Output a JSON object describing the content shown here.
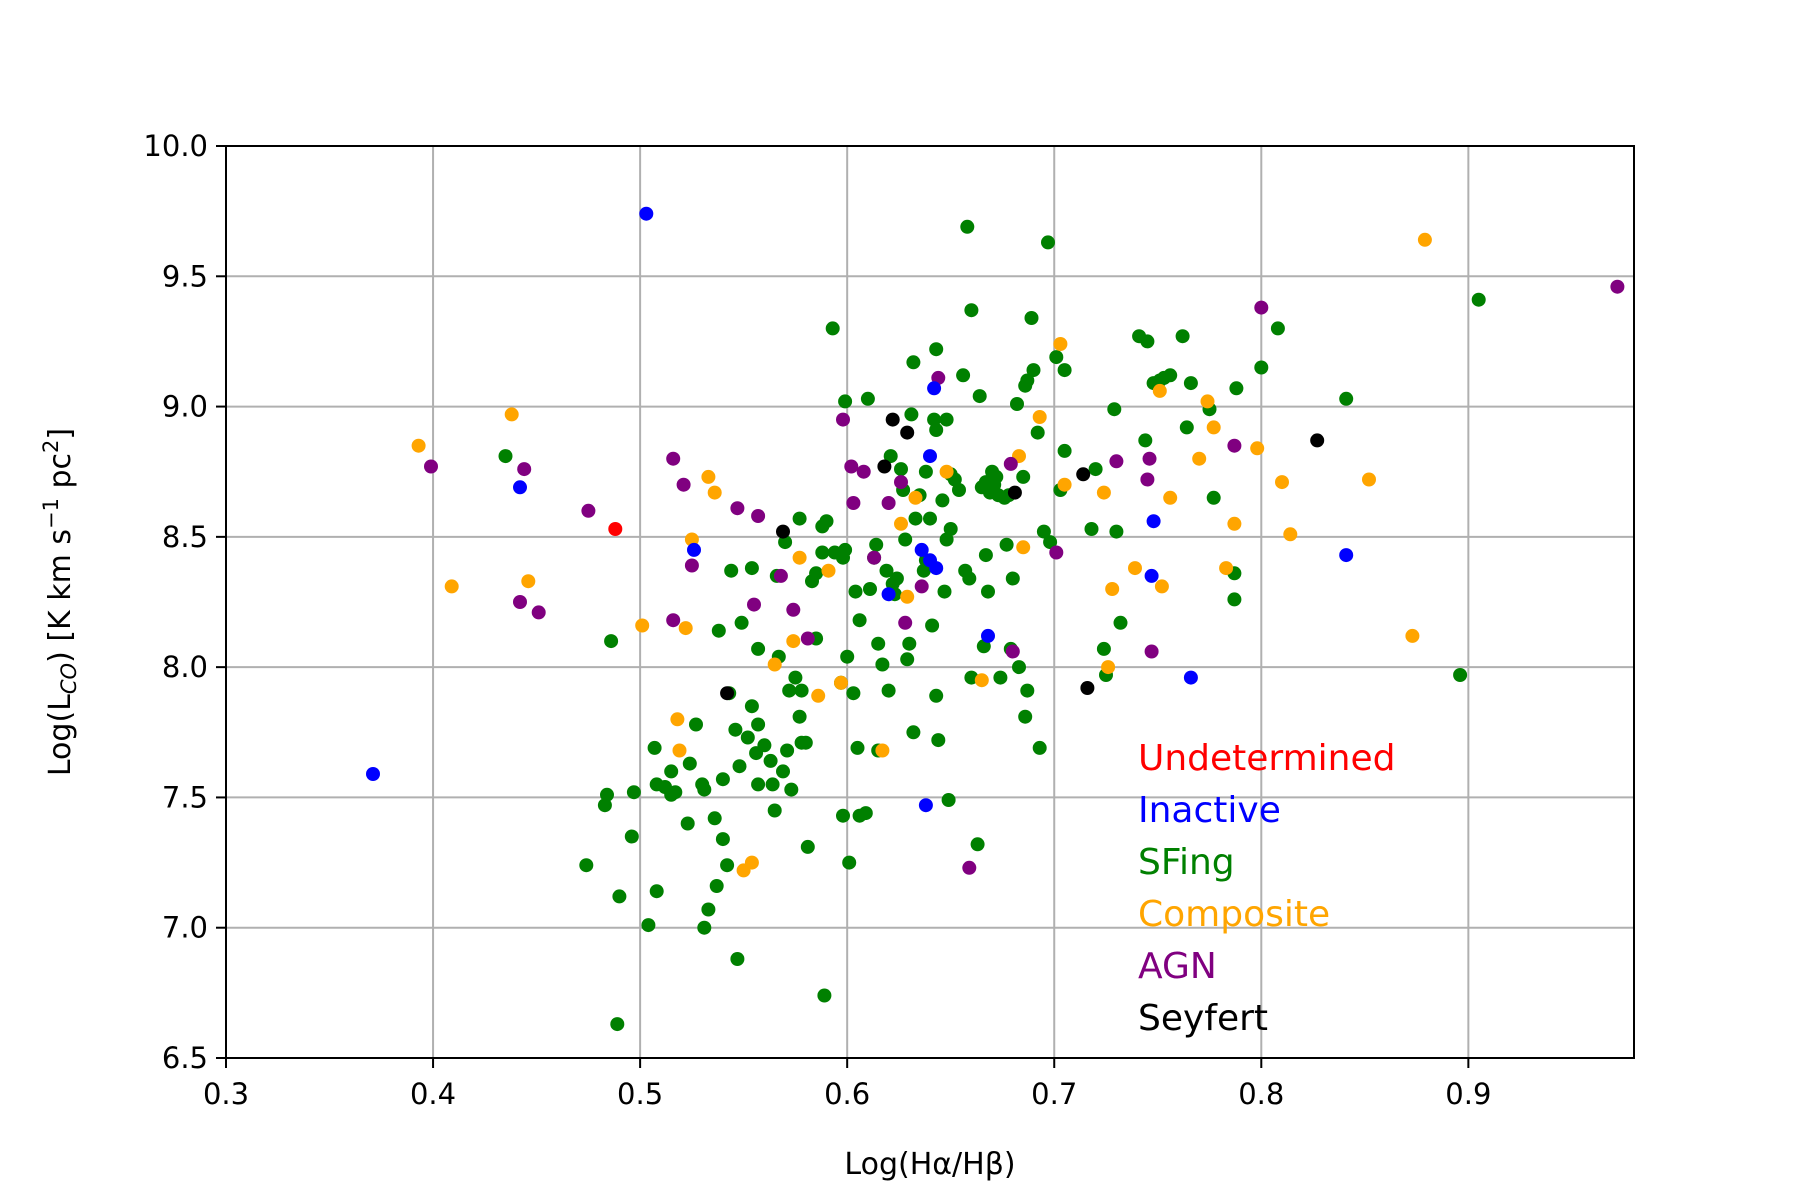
{
  "chart_data": {
    "type": "scatter",
    "xlabel_parts": [
      "Log(H",
      "α",
      "/H",
      "β",
      ")"
    ],
    "ylabel_parts": [
      "Log(L",
      "CO",
      ") [K km s",
      "−1",
      " pc",
      "2",
      "]"
    ],
    "xlim": [
      0.3,
      0.98
    ],
    "ylim": [
      6.5,
      10.0
    ],
    "xticks": [
      "0.3",
      "0.4",
      "0.5",
      "0.6",
      "0.7",
      "0.8",
      "0.9"
    ],
    "yticks": [
      "6.5",
      "7.0",
      "7.5",
      "8.0",
      "8.5",
      "9.0",
      "9.5",
      "10.0"
    ],
    "grid": true,
    "legend_position": "lower-right",
    "series": [
      {
        "name": "Undetermined",
        "color": "#ff0000",
        "points": [
          [
            0.488,
            8.53
          ]
        ]
      },
      {
        "name": "Inactive",
        "color": "#0000ff",
        "points": [
          [
            0.371,
            7.59
          ],
          [
            0.442,
            8.69
          ],
          [
            0.503,
            9.74
          ],
          [
            0.526,
            8.45
          ],
          [
            0.64,
            8.81
          ],
          [
            0.642,
            9.07
          ],
          [
            0.64,
            8.41
          ],
          [
            0.62,
            8.28
          ],
          [
            0.636,
            8.45
          ],
          [
            0.643,
            8.38
          ],
          [
            0.638,
            7.47
          ],
          [
            0.668,
            8.12
          ],
          [
            0.748,
            8.56
          ],
          [
            0.747,
            8.35
          ],
          [
            0.766,
            7.96
          ],
          [
            0.841,
            8.43
          ]
        ]
      },
      {
        "name": "SFing",
        "color": "#008000",
        "points": [
          [
            0.435,
            8.81
          ],
          [
            0.474,
            7.24
          ],
          [
            0.483,
            7.47
          ],
          [
            0.484,
            7.51
          ],
          [
            0.486,
            8.1
          ],
          [
            0.489,
            6.63
          ],
          [
            0.49,
            7.12
          ],
          [
            0.496,
            7.35
          ],
          [
            0.497,
            7.52
          ],
          [
            0.504,
            7.01
          ],
          [
            0.507,
            7.69
          ],
          [
            0.508,
            7.14
          ],
          [
            0.508,
            7.55
          ],
          [
            0.512,
            7.54
          ],
          [
            0.515,
            7.51
          ],
          [
            0.515,
            7.6
          ],
          [
            0.517,
            7.52
          ],
          [
            0.523,
            7.4
          ],
          [
            0.524,
            7.63
          ],
          [
            0.527,
            7.78
          ],
          [
            0.53,
            7.55
          ],
          [
            0.531,
            7.53
          ],
          [
            0.531,
            7.0
          ],
          [
            0.533,
            7.07
          ],
          [
            0.536,
            7.42
          ],
          [
            0.537,
            7.16
          ],
          [
            0.538,
            8.14
          ],
          [
            0.54,
            7.34
          ],
          [
            0.54,
            7.57
          ],
          [
            0.542,
            7.24
          ],
          [
            0.543,
            7.9
          ],
          [
            0.544,
            8.37
          ],
          [
            0.546,
            7.76
          ],
          [
            0.547,
            6.88
          ],
          [
            0.548,
            7.62
          ],
          [
            0.549,
            8.17
          ],
          [
            0.552,
            7.73
          ],
          [
            0.554,
            7.85
          ],
          [
            0.554,
            8.38
          ],
          [
            0.556,
            7.67
          ],
          [
            0.557,
            7.78
          ],
          [
            0.557,
            8.07
          ],
          [
            0.557,
            7.55
          ],
          [
            0.56,
            7.7
          ],
          [
            0.563,
            7.64
          ],
          [
            0.564,
            7.55
          ],
          [
            0.565,
            7.45
          ],
          [
            0.566,
            8.35
          ],
          [
            0.567,
            8.04
          ],
          [
            0.569,
            7.6
          ],
          [
            0.57,
            8.48
          ],
          [
            0.571,
            7.68
          ],
          [
            0.572,
            7.91
          ],
          [
            0.573,
            7.53
          ],
          [
            0.575,
            7.96
          ],
          [
            0.577,
            7.81
          ],
          [
            0.577,
            8.57
          ],
          [
            0.578,
            7.91
          ],
          [
            0.578,
            7.71
          ],
          [
            0.58,
            7.71
          ],
          [
            0.581,
            7.31
          ],
          [
            0.583,
            8.33
          ],
          [
            0.585,
            8.36
          ],
          [
            0.585,
            8.11
          ],
          [
            0.588,
            8.44
          ],
          [
            0.588,
            8.54
          ],
          [
            0.589,
            6.74
          ],
          [
            0.59,
            8.56
          ],
          [
            0.593,
            9.3
          ],
          [
            0.594,
            8.44
          ],
          [
            0.597,
            7.94
          ],
          [
            0.598,
            8.42
          ],
          [
            0.598,
            7.43
          ],
          [
            0.599,
            8.45
          ],
          [
            0.599,
            9.02
          ],
          [
            0.6,
            8.04
          ],
          [
            0.601,
            7.25
          ],
          [
            0.603,
            7.9
          ],
          [
            0.604,
            8.29
          ],
          [
            0.605,
            7.69
          ],
          [
            0.606,
            8.18
          ],
          [
            0.606,
            7.43
          ],
          [
            0.609,
            7.44
          ],
          [
            0.61,
            9.03
          ],
          [
            0.611,
            8.3
          ],
          [
            0.613,
            8.42
          ],
          [
            0.614,
            8.47
          ],
          [
            0.615,
            8.09
          ],
          [
            0.615,
            7.68
          ],
          [
            0.617,
            8.01
          ],
          [
            0.619,
            8.37
          ],
          [
            0.62,
            7.91
          ],
          [
            0.621,
            8.81
          ],
          [
            0.622,
            8.32
          ],
          [
            0.623,
            8.28
          ],
          [
            0.624,
            8.34
          ],
          [
            0.626,
            8.76
          ],
          [
            0.627,
            8.68
          ],
          [
            0.628,
            8.49
          ],
          [
            0.629,
            8.03
          ],
          [
            0.63,
            8.09
          ],
          [
            0.631,
            8.97
          ],
          [
            0.632,
            7.75
          ],
          [
            0.632,
            9.17
          ],
          [
            0.633,
            8.57
          ],
          [
            0.635,
            8.66
          ],
          [
            0.637,
            8.37
          ],
          [
            0.638,
            8.41
          ],
          [
            0.638,
            8.75
          ],
          [
            0.64,
            8.57
          ],
          [
            0.641,
            8.16
          ],
          [
            0.642,
            8.95
          ],
          [
            0.643,
            7.89
          ],
          [
            0.643,
            8.91
          ],
          [
            0.643,
            9.22
          ],
          [
            0.644,
            7.72
          ],
          [
            0.646,
            8.64
          ],
          [
            0.647,
            8.29
          ],
          [
            0.648,
            8.49
          ],
          [
            0.648,
            8.95
          ],
          [
            0.649,
            7.49
          ],
          [
            0.65,
            8.53
          ],
          [
            0.65,
            8.74
          ],
          [
            0.652,
            8.72
          ],
          [
            0.654,
            8.68
          ],
          [
            0.656,
            9.12
          ],
          [
            0.657,
            8.37
          ],
          [
            0.658,
            9.69
          ],
          [
            0.659,
            8.34
          ],
          [
            0.66,
            9.37
          ],
          [
            0.66,
            7.96
          ],
          [
            0.663,
            7.32
          ],
          [
            0.664,
            9.04
          ],
          [
            0.665,
            8.69
          ],
          [
            0.666,
            8.08
          ],
          [
            0.667,
            8.43
          ],
          [
            0.667,
            8.71
          ],
          [
            0.668,
            8.29
          ],
          [
            0.669,
            8.67
          ],
          [
            0.67,
            8.75
          ],
          [
            0.671,
            8.7
          ],
          [
            0.672,
            8.73
          ],
          [
            0.673,
            8.66
          ],
          [
            0.674,
            7.96
          ],
          [
            0.676,
            8.65
          ],
          [
            0.677,
            8.47
          ],
          [
            0.678,
            8.66
          ],
          [
            0.679,
            8.07
          ],
          [
            0.68,
            8.34
          ],
          [
            0.682,
            9.01
          ],
          [
            0.683,
            8.0
          ],
          [
            0.685,
            8.73
          ],
          [
            0.686,
            9.08
          ],
          [
            0.686,
            7.81
          ],
          [
            0.687,
            9.1
          ],
          [
            0.687,
            7.91
          ],
          [
            0.689,
            9.34
          ],
          [
            0.69,
            9.14
          ],
          [
            0.692,
            8.9
          ],
          [
            0.693,
            7.69
          ],
          [
            0.695,
            8.52
          ],
          [
            0.697,
            9.63
          ],
          [
            0.698,
            8.48
          ],
          [
            0.701,
            9.19
          ],
          [
            0.703,
            8.68
          ],
          [
            0.705,
            8.83
          ],
          [
            0.705,
            9.14
          ],
          [
            0.718,
            8.53
          ],
          [
            0.72,
            8.76
          ],
          [
            0.724,
            8.07
          ],
          [
            0.725,
            7.97
          ],
          [
            0.729,
            8.99
          ],
          [
            0.73,
            8.52
          ],
          [
            0.732,
            8.17
          ],
          [
            0.741,
            9.27
          ],
          [
            0.744,
            8.87
          ],
          [
            0.745,
            9.25
          ],
          [
            0.748,
            9.09
          ],
          [
            0.751,
            9.1
          ],
          [
            0.753,
            9.11
          ],
          [
            0.756,
            9.12
          ],
          [
            0.762,
            9.27
          ],
          [
            0.764,
            8.92
          ],
          [
            0.766,
            9.09
          ],
          [
            0.775,
            8.99
          ],
          [
            0.777,
            8.65
          ],
          [
            0.787,
            8.36
          ],
          [
            0.787,
            8.26
          ],
          [
            0.788,
            9.07
          ],
          [
            0.8,
            9.15
          ],
          [
            0.808,
            9.3
          ],
          [
            0.841,
            9.03
          ],
          [
            0.896,
            7.97
          ],
          [
            0.905,
            9.41
          ]
        ]
      },
      {
        "name": "Composite",
        "color": "#ffa500",
        "points": [
          [
            0.393,
            8.85
          ],
          [
            0.409,
            8.31
          ],
          [
            0.438,
            8.97
          ],
          [
            0.446,
            8.33
          ],
          [
            0.501,
            8.16
          ],
          [
            0.518,
            7.8
          ],
          [
            0.519,
            7.68
          ],
          [
            0.522,
            8.15
          ],
          [
            0.525,
            8.49
          ],
          [
            0.533,
            8.73
          ],
          [
            0.536,
            8.67
          ],
          [
            0.55,
            7.22
          ],
          [
            0.554,
            7.25
          ],
          [
            0.565,
            8.01
          ],
          [
            0.574,
            8.1
          ],
          [
            0.577,
            8.42
          ],
          [
            0.586,
            7.89
          ],
          [
            0.591,
            8.37
          ],
          [
            0.597,
            7.94
          ],
          [
            0.617,
            7.68
          ],
          [
            0.626,
            8.55
          ],
          [
            0.629,
            8.27
          ],
          [
            0.633,
            8.65
          ],
          [
            0.648,
            8.75
          ],
          [
            0.665,
            7.95
          ],
          [
            0.683,
            8.81
          ],
          [
            0.685,
            8.46
          ],
          [
            0.693,
            8.96
          ],
          [
            0.703,
            9.24
          ],
          [
            0.705,
            8.7
          ],
          [
            0.724,
            8.67
          ],
          [
            0.726,
            8.0
          ],
          [
            0.728,
            8.3
          ],
          [
            0.739,
            8.38
          ],
          [
            0.751,
            9.06
          ],
          [
            0.752,
            8.31
          ],
          [
            0.756,
            8.65
          ],
          [
            0.77,
            8.8
          ],
          [
            0.774,
            9.02
          ],
          [
            0.777,
            8.92
          ],
          [
            0.783,
            8.38
          ],
          [
            0.787,
            8.55
          ],
          [
            0.798,
            8.84
          ],
          [
            0.81,
            8.71
          ],
          [
            0.814,
            8.51
          ],
          [
            0.852,
            8.72
          ],
          [
            0.873,
            8.12
          ],
          [
            0.879,
            9.64
          ]
        ]
      },
      {
        "name": "AGN",
        "color": "#800080",
        "points": [
          [
            0.399,
            8.77
          ],
          [
            0.442,
            8.25
          ],
          [
            0.444,
            8.76
          ],
          [
            0.451,
            8.21
          ],
          [
            0.475,
            8.6
          ],
          [
            0.516,
            8.18
          ],
          [
            0.516,
            8.8
          ],
          [
            0.521,
            8.7
          ],
          [
            0.525,
            8.39
          ],
          [
            0.547,
            8.61
          ],
          [
            0.555,
            8.24
          ],
          [
            0.557,
            8.58
          ],
          [
            0.568,
            8.35
          ],
          [
            0.574,
            8.22
          ],
          [
            0.581,
            8.11
          ],
          [
            0.598,
            8.95
          ],
          [
            0.602,
            8.77
          ],
          [
            0.603,
            8.63
          ],
          [
            0.608,
            8.75
          ],
          [
            0.613,
            8.42
          ],
          [
            0.62,
            8.63
          ],
          [
            0.626,
            8.71
          ],
          [
            0.628,
            8.17
          ],
          [
            0.636,
            8.31
          ],
          [
            0.644,
            9.11
          ],
          [
            0.659,
            7.23
          ],
          [
            0.679,
            8.78
          ],
          [
            0.68,
            8.06
          ],
          [
            0.701,
            8.44
          ],
          [
            0.73,
            8.79
          ],
          [
            0.745,
            8.72
          ],
          [
            0.746,
            8.8
          ],
          [
            0.747,
            8.06
          ],
          [
            0.787,
            8.85
          ],
          [
            0.8,
            9.38
          ],
          [
            0.972,
            9.46
          ]
        ]
      },
      {
        "name": "Seyfert",
        "color": "#000000",
        "points": [
          [
            0.542,
            7.9
          ],
          [
            0.569,
            8.52
          ],
          [
            0.618,
            8.77
          ],
          [
            0.622,
            8.95
          ],
          [
            0.629,
            8.9
          ],
          [
            0.681,
            8.67
          ],
          [
            0.714,
            8.74
          ],
          [
            0.716,
            7.92
          ],
          [
            0.827,
            8.87
          ]
        ]
      }
    ]
  }
}
